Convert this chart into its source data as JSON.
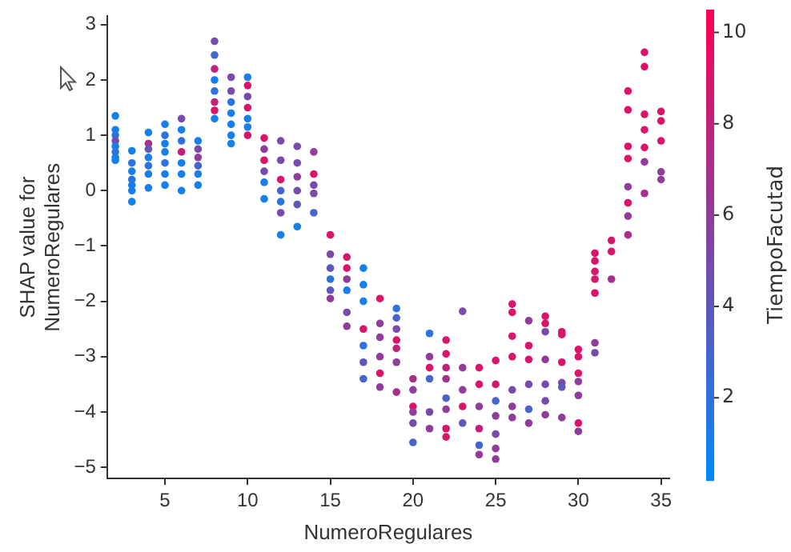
{
  "chart_data": {
    "type": "scatter",
    "xlabel": "NumeroRegulares",
    "ylabel": "SHAP value for\nNumeroRegulares",
    "clabel": "TiempoFacutad",
    "xlim": [
      1.5,
      35.5
    ],
    "xticks": [
      5,
      10,
      15,
      20,
      25,
      30,
      35
    ],
    "ylim": [
      -5.2,
      3.15
    ],
    "yticks": [
      {
        "value": -5,
        "label": "−5"
      },
      {
        "value": -4,
        "label": "−4"
      },
      {
        "value": -3,
        "label": "−3"
      },
      {
        "value": -2,
        "label": "−2"
      },
      {
        "value": -1,
        "label": "−1"
      },
      0,
      1,
      2,
      3
    ],
    "clim": [
      0.2,
      10.5
    ],
    "cticks": [
      2,
      4,
      6,
      8,
      10
    ],
    "grid": false,
    "legend": false,
    "marker": "circle",
    "series": [
      {
        "x": [
          2,
          2,
          2,
          2,
          2,
          2,
          2,
          2,
          3,
          3,
          3,
          3,
          3,
          3,
          3,
          4,
          4,
          4,
          4,
          4,
          4,
          4,
          5,
          5,
          5,
          5,
          5,
          5,
          5,
          6,
          6,
          6,
          6,
          6,
          6,
          6,
          7,
          7,
          7,
          7,
          7,
          7,
          8,
          8,
          8,
          8,
          8,
          8,
          8,
          8,
          9,
          9,
          9,
          9,
          9,
          9,
          9,
          10,
          10,
          10,
          10,
          10,
          10,
          10,
          11,
          11,
          11,
          11,
          11,
          11,
          12,
          12,
          12,
          12,
          12,
          12,
          12,
          13,
          13,
          13,
          13,
          13,
          13,
          14,
          14,
          14,
          14,
          14,
          15,
          15,
          15,
          15,
          15,
          15,
          16,
          16,
          16,
          16,
          16,
          16,
          17,
          17,
          17,
          17,
          17,
          17,
          17,
          18,
          18,
          18,
          18,
          18,
          18,
          19,
          19,
          19,
          19,
          19,
          19,
          19,
          20,
          20,
          20,
          20,
          20,
          20,
          21,
          21,
          21,
          21,
          21,
          21,
          22,
          22,
          22,
          22,
          22,
          22,
          22,
          22,
          23,
          23,
          23,
          23,
          23,
          24,
          24,
          24,
          24,
          24,
          24,
          25,
          25,
          25,
          25,
          25,
          25,
          25,
          26,
          26,
          26,
          26,
          26,
          26,
          26,
          27,
          27,
          27,
          27,
          27,
          27,
          28,
          28,
          28,
          28,
          28,
          28,
          28,
          29,
          29,
          29,
          29,
          29,
          29,
          30,
          30,
          30,
          30,
          30,
          30,
          30,
          31,
          31,
          31,
          31,
          31,
          31,
          31,
          32,
          32,
          32,
          33,
          33,
          33,
          33,
          33,
          33,
          33,
          33,
          34,
          34,
          34,
          34,
          34,
          34,
          34,
          35,
          35,
          35,
          35,
          35
        ],
        "values": [
          1.35,
          1.1,
          1.0,
          0.9,
          0.8,
          0.7,
          0.6,
          0.55,
          0.72,
          0.5,
          0.35,
          0.2,
          0.1,
          0,
          -0.2,
          1.05,
          0.85,
          0.75,
          0.6,
          0.45,
          0.3,
          0.05,
          1.2,
          1.0,
          0.85,
          0.7,
          0.5,
          0.3,
          0.1,
          1.3,
          1.1,
          0.9,
          0.7,
          0.5,
          0.3,
          0,
          0.9,
          0.75,
          0.6,
          0.45,
          0.3,
          0.1,
          2.7,
          2.45,
          2.2,
          2.0,
          1.8,
          1.6,
          1.45,
          1.3,
          2.05,
          1.8,
          1.6,
          1.4,
          1.2,
          1.0,
          0.85,
          2.05,
          1.9,
          1.7,
          1.5,
          1.3,
          1.15,
          1.0,
          0.95,
          0.75,
          0.55,
          0.35,
          0.15,
          -0.15,
          0.9,
          0.55,
          0.2,
          0,
          -0.2,
          -0.4,
          -0.8,
          0.8,
          0.5,
          0.25,
          0,
          -0.25,
          -0.65,
          0.7,
          0.3,
          0.1,
          -0.05,
          -0.4,
          -0.8,
          -1.15,
          -1.4,
          -1.6,
          -1.8,
          -1.95,
          -1.2,
          -1.4,
          -1.6,
          -1.8,
          -2.2,
          -2.45,
          -1.4,
          -1.7,
          -2.0,
          -2.5,
          -2.8,
          -3.1,
          -3.4,
          -1.95,
          -2.4,
          -2.65,
          -3.0,
          -3.3,
          -3.55,
          -2.13,
          -2.3,
          -2.5,
          -2.7,
          -2.85,
          -3.1,
          -3.64,
          -3.4,
          -3.6,
          -3.9,
          -4.0,
          -4.2,
          -4.55,
          -2.58,
          -3.0,
          -3.2,
          -3.4,
          -4.0,
          -4.3,
          -2.7,
          -2.95,
          -3.2,
          -3.4,
          -3.75,
          -3.95,
          -4.3,
          -4.45,
          -2.18,
          -3.2,
          -3.6,
          -3.9,
          -4.2,
          -3.2,
          -3.5,
          -3.9,
          -4.3,
          -4.6,
          -4.77,
          -3.07,
          -3.5,
          -3.8,
          -4.07,
          -4.4,
          -4.66,
          -4.85,
          -2.05,
          -2.2,
          -2.63,
          -3.0,
          -3.6,
          -3.9,
          -4.1,
          -2.35,
          -2.8,
          -3.05,
          -3.5,
          -3.95,
          -4.2,
          -2.27,
          -2.4,
          -2.55,
          -3.05,
          -3.5,
          -3.8,
          -4.05,
          -2.55,
          -2.6,
          -3.1,
          -3.47,
          -3.55,
          -4.1,
          -2.87,
          -3.0,
          -3.3,
          -3.45,
          -3.7,
          -4.2,
          -4.35,
          -1.13,
          -1.27,
          -1.46,
          -1.6,
          -1.85,
          -2.75,
          -2.93,
          -0.9,
          -1.1,
          -1.6,
          1.8,
          1.46,
          0.8,
          0.58,
          0.07,
          -0.22,
          -0.46,
          -0.8,
          2.5,
          2.24,
          1.38,
          1.1,
          0.78,
          0.52,
          -0.05,
          1.43,
          1.26,
          0.9,
          0.34,
          0.2
        ],
        "cvalues": [
          1,
          1,
          2,
          5,
          1,
          2,
          1,
          1,
          1,
          2,
          1,
          2,
          1,
          1,
          1,
          1,
          7,
          4,
          1,
          2,
          1,
          1,
          1,
          2,
          1,
          1,
          2,
          1,
          1,
          5,
          1,
          2,
          8,
          1,
          1,
          1,
          1,
          5,
          6,
          3,
          1,
          1,
          5,
          3,
          8,
          1,
          2,
          8,
          9,
          1,
          5,
          5,
          2,
          1,
          1,
          1,
          1,
          1,
          9,
          5,
          9,
          1,
          1,
          9,
          9,
          6,
          9,
          5,
          1,
          1,
          5,
          5,
          9,
          3,
          2,
          5,
          1,
          5,
          5,
          6,
          5,
          4,
          1,
          6,
          9,
          5,
          5,
          3,
          9,
          5,
          4,
          2,
          4,
          6,
          9,
          9,
          6,
          1,
          5,
          6,
          1,
          1,
          1,
          9,
          2,
          4,
          3,
          9,
          6,
          6,
          6,
          9,
          6,
          2,
          3,
          5,
          9,
          8,
          6,
          7,
          7,
          6,
          9,
          6,
          5,
          3,
          2,
          6,
          9,
          3,
          5,
          6,
          9,
          9,
          8,
          7,
          3,
          6,
          9,
          9,
          5,
          6,
          6,
          9,
          4,
          9,
          9,
          6,
          8,
          3,
          6,
          9,
          9,
          3,
          6,
          5,
          6,
          6,
          9,
          9,
          9,
          9,
          5,
          6,
          6,
          6,
          9,
          9,
          5,
          3,
          6,
          9,
          9,
          5,
          6,
          5,
          5,
          6,
          9,
          9,
          9,
          5,
          4,
          6,
          9,
          9,
          9,
          6,
          6,
          9,
          6,
          9,
          9,
          9,
          9,
          9,
          6,
          5,
          9,
          9,
          7,
          9,
          9,
          9,
          9,
          6,
          9,
          6,
          7,
          9,
          9,
          9,
          9,
          9,
          6,
          7,
          9,
          9,
          9,
          6,
          6
        ]
      }
    ]
  }
}
